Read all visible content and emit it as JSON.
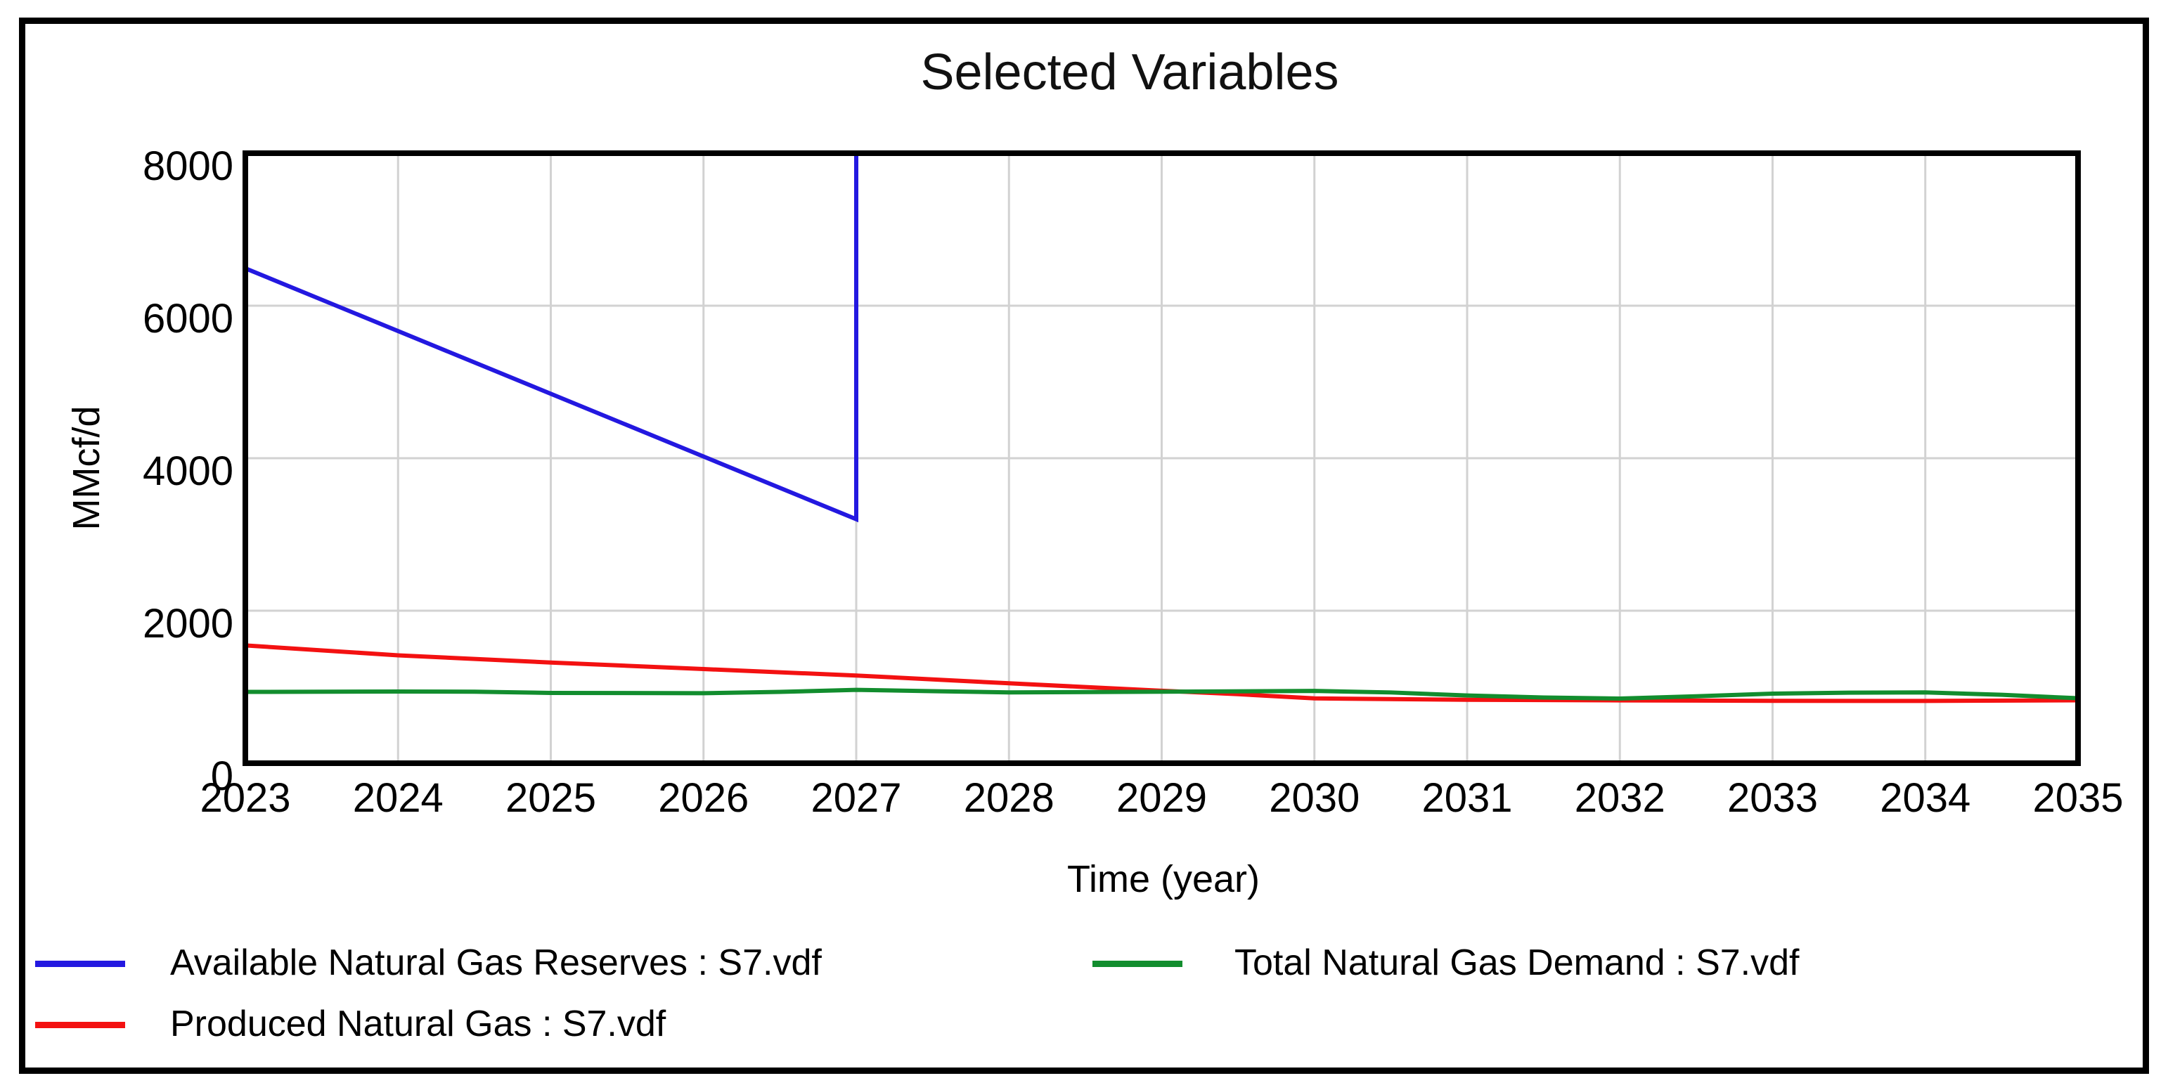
{
  "window": {
    "background": "#ffffff",
    "frame_color": "#000000"
  },
  "chart_data": {
    "type": "line",
    "title": "Selected Variables",
    "xlabel": "Time (year)",
    "ylabel": "MMcf/d",
    "xlim": [
      2023,
      2035
    ],
    "ylim": [
      0,
      8000
    ],
    "xticks": [
      2023,
      2024,
      2025,
      2026,
      2027,
      2028,
      2029,
      2030,
      2031,
      2032,
      2033,
      2034,
      2035
    ],
    "yticks": [
      0,
      2000,
      4000,
      6000,
      8000
    ],
    "grid": true,
    "grid_color": "#d2d2d2",
    "axis_color": "#000000",
    "legend_position": "bottom",
    "series": [
      {
        "name": "Available Natural Gas Reserves : S7.vdf",
        "color": "#2318e0",
        "note": "declines linearly, then jumps vertically above the 8000 axis maximum at 2027 (clipped at plot top)",
        "points": [
          [
            2023,
            6490
          ],
          [
            2027,
            3200
          ],
          [
            2027,
            8400
          ]
        ]
      },
      {
        "name": "Produced Natural Gas : S7.vdf",
        "color": "#f31111",
        "points": [
          [
            2023,
            1545
          ],
          [
            2024,
            1415
          ],
          [
            2025,
            1320
          ],
          [
            2026,
            1235
          ],
          [
            2027,
            1150
          ],
          [
            2028,
            1048
          ],
          [
            2029,
            950
          ],
          [
            2029.5,
            905
          ],
          [
            2030,
            850
          ],
          [
            2031,
            832
          ],
          [
            2032,
            824
          ],
          [
            2033,
            818
          ],
          [
            2034,
            817
          ],
          [
            2035,
            825
          ]
        ]
      },
      {
        "name": "Total Natural Gas Demand : S7.vdf",
        "color": "#128d2e",
        "points": [
          [
            2023,
            935
          ],
          [
            2024,
            940
          ],
          [
            2024.5,
            938
          ],
          [
            2025,
            922
          ],
          [
            2026,
            918
          ],
          [
            2026.5,
            935
          ],
          [
            2027,
            962
          ],
          [
            2027.5,
            945
          ],
          [
            2028,
            928
          ],
          [
            2029,
            938
          ],
          [
            2030,
            948
          ],
          [
            2030.5,
            928
          ],
          [
            2031,
            888
          ],
          [
            2031.5,
            862
          ],
          [
            2032,
            848
          ],
          [
            2032.5,
            878
          ],
          [
            2033,
            912
          ],
          [
            2033.5,
            925
          ],
          [
            2034,
            928
          ],
          [
            2034.5,
            898
          ],
          [
            2035,
            852
          ]
        ]
      }
    ]
  }
}
